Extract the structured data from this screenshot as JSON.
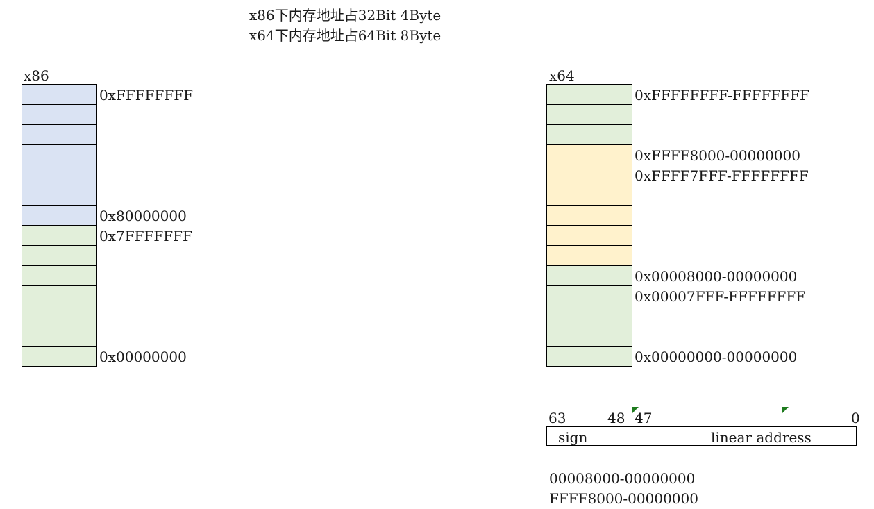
{
  "title": {
    "line1": "x86下内存地址占32Bit 4Byte",
    "line2": "x64下内存地址占64Bit 8Byte"
  },
  "x86": {
    "label": "x86",
    "cells": [
      "#dae3f3",
      "#dae3f3",
      "#dae3f3",
      "#dae3f3",
      "#dae3f3",
      "#dae3f3",
      "#dae3f3",
      "#e2efda",
      "#e2efda",
      "#e2efda",
      "#e2efda",
      "#e2efda",
      "#e2efda",
      "#e2efda"
    ],
    "addresses": [
      {
        "row": 0,
        "text": "0xFFFFFFFF"
      },
      {
        "row": 6,
        "text": "0x80000000"
      },
      {
        "row": 7,
        "text": "0x7FFFFFFF"
      },
      {
        "row": 13,
        "text": "0x00000000"
      }
    ]
  },
  "x64": {
    "label": "x64",
    "cells": [
      "#e2efda",
      "#e2efda",
      "#e2efda",
      "#fff2cc",
      "#fff2cc",
      "#fff2cc",
      "#fff2cc",
      "#fff2cc",
      "#fff2cc",
      "#e2efda",
      "#e2efda",
      "#e2efda",
      "#e2efda",
      "#e2efda"
    ],
    "addresses": [
      {
        "row": 0,
        "text": "0xFFFFFFFF-FFFFFFFF"
      },
      {
        "row": 3,
        "text": "0xFFFF8000-00000000"
      },
      {
        "row": 4,
        "text": "0xFFFF7FFF-FFFFFFFF"
      },
      {
        "row": 9,
        "text": "0x00008000-00000000"
      },
      {
        "row": 10,
        "text": "0x00007FFF-FFFFFFFF"
      },
      {
        "row": 13,
        "text": "0x00000000-00000000"
      }
    ]
  },
  "bits": {
    "b63": "63",
    "b48": "48",
    "b47": "47",
    "b0": "0",
    "sign": "sign",
    "linear": "linear address"
  },
  "notes": {
    "line1": "00008000-00000000",
    "line2": "FFFF8000-00000000"
  },
  "colors": {
    "kernel_blue": "#dae3f3",
    "user_green": "#e2efda",
    "noncanonical_yellow": "#fff2cc",
    "marker_green": "#1e7b1e"
  }
}
